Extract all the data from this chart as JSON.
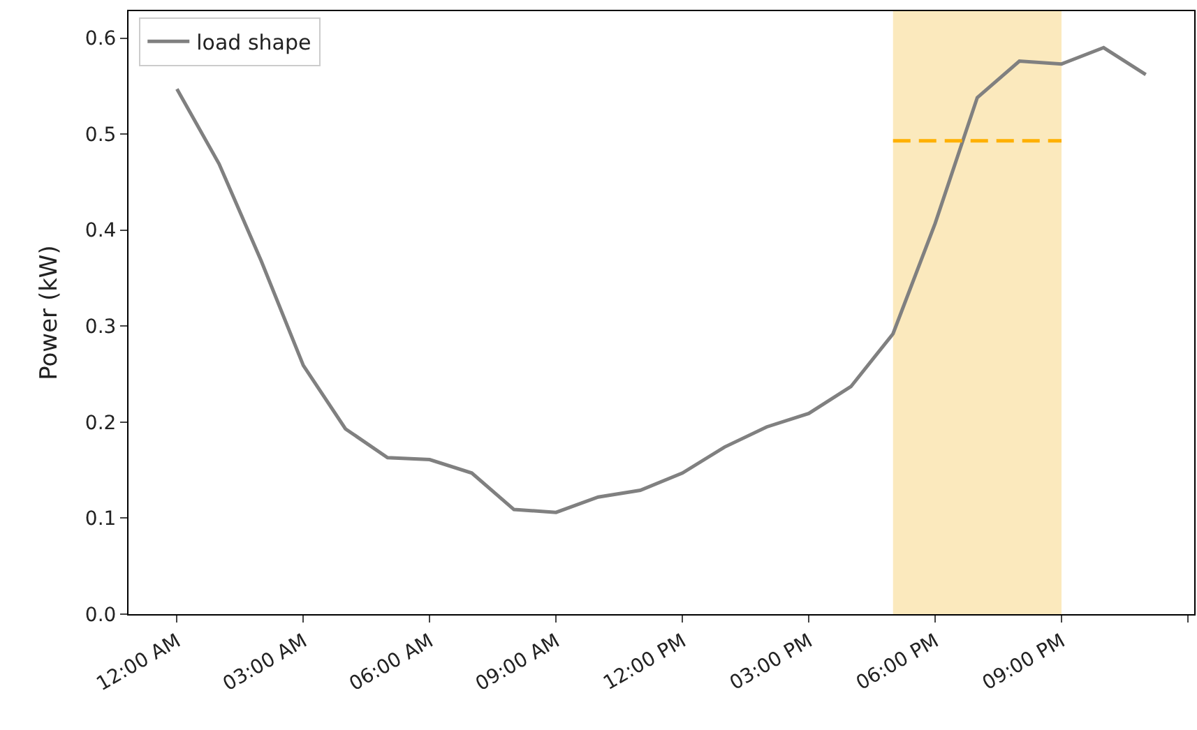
{
  "chart_data": {
    "type": "line",
    "ylabel": "Power (kW)",
    "x": [
      0,
      1,
      2,
      3,
      4,
      5,
      6,
      7,
      8,
      9,
      10,
      11,
      12,
      13,
      14,
      15,
      16,
      17,
      18,
      19,
      20,
      21,
      22,
      23
    ],
    "series": [
      {
        "name": "load shape",
        "color": "#808080",
        "line_style": "solid",
        "values": [
          0.547,
          0.469,
          0.368,
          0.259,
          0.193,
          0.163,
          0.161,
          0.147,
          0.109,
          0.106,
          0.122,
          0.129,
          0.147,
          0.174,
          0.195,
          0.209,
          0.237,
          0.292,
          0.407,
          0.538,
          0.576,
          0.573,
          0.59,
          0.562
        ]
      },
      {
        "type": "line",
        "color": "#ffb000",
        "line_style": "dashed",
        "x": [
          17,
          21
        ],
        "values": [
          0.493,
          0.493
        ]
      }
    ],
    "bands": [
      {
        "axis": "x",
        "from": 17,
        "to": 21,
        "color": "#fbe9bd"
      }
    ],
    "xlim": [
      -1.15,
      24.15
    ],
    "xticks": [
      {
        "value": 0,
        "label": "12:00 AM"
      },
      {
        "value": 3,
        "label": "03:00 AM"
      },
      {
        "value": 6,
        "label": "06:00 AM"
      },
      {
        "value": 9,
        "label": "09:00 AM"
      },
      {
        "value": 12,
        "label": "12:00 PM"
      },
      {
        "value": 15,
        "label": "03:00 PM"
      },
      {
        "value": 18,
        "label": "06:00 PM"
      },
      {
        "value": 21,
        "label": "09:00 PM"
      },
      {
        "value": 24,
        "label": null
      }
    ],
    "ylim": [
      0,
      0.628
    ],
    "yticks": [
      {
        "value": 0,
        "label": "0.0"
      },
      {
        "value": 0.1,
        "label": "0.1"
      },
      {
        "value": 0.2,
        "label": "0.2"
      },
      {
        "value": 0.3,
        "label": "0.3"
      },
      {
        "value": 0.4,
        "label": "0.4"
      },
      {
        "value": 0.5,
        "label": "0.5"
      },
      {
        "value": 0.6,
        "label": "0.6"
      }
    ],
    "grid": false,
    "legend": "top left",
    "marker": "none"
  }
}
